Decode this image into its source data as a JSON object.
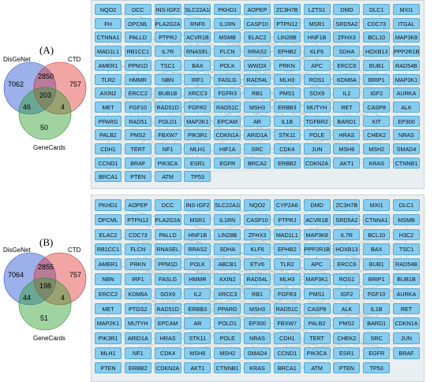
{
  "panel_a": {
    "label": "(A)",
    "venn": {
      "set_names": [
        "DisGeNet",
        "CTD",
        "GeneCards"
      ],
      "colors": [
        "#4a6fd8",
        "#e03a3a",
        "#2f9e2f"
      ],
      "regions": {
        "disgenet_only": "7062",
        "ctd_only": "757",
        "genecards_only": "50",
        "disgenet_ctd": "2850",
        "disgenet_genecards": "46",
        "ctd_genecards": "4",
        "all_three": "203"
      }
    },
    "network_nodes": [
      "NQO2",
      "DCC",
      "INS-IGF2",
      "SLC22A18",
      "PKHD1",
      "AOPEP",
      "ZC3H7B",
      "LZTS1",
      "DMD",
      "DLC1",
      "MXI1",
      "FH",
      "OPCML",
      "PLA2G2A",
      "RNF6",
      "IL1RN",
      "CASP10",
      "PTPN12",
      "MSR1",
      "SRD5A2",
      "CDC73",
      "ITGAL",
      "CTNNA1",
      "PALLD",
      "PTPRJ",
      "ACVR1B",
      "MSMB",
      "ELAC2",
      "LIN28B",
      "HNF1B",
      "ZFHX3",
      "BCL10",
      "MAP3K8",
      "MAD1L1",
      "RB1CC1",
      "IL7R",
      "RNASEL",
      "FLCN",
      "RRAS2",
      "EPHB2",
      "KLF6",
      "SDHA",
      "HOXB13",
      "PPP2R1B",
      "AMER1",
      "PPM1D",
      "TSC1",
      "BAX",
      "POLK",
      "WWOX",
      "PRKN",
      "APC",
      "ERCC6",
      "BUB1",
      "RAD54B",
      "TLR2",
      "HMMR",
      "NBN",
      "IRF1",
      "FASLG",
      "RAD54L",
      "MLH3",
      "ROS1",
      "KDM6A",
      "BRIP1",
      "MAP3K1",
      "AXIN2",
      "ERCC2",
      "BUB1B",
      "XRCC3",
      "FGFR3",
      "RB1",
      "PMS1",
      "SOX9",
      "IL2",
      "IGF2",
      "AURKA",
      "MET",
      "FGF10",
      "RAD51D",
      "FGFR2",
      "RAD51C",
      "MSH3",
      "ERBB3",
      "MUTYH",
      "RET",
      "CASP8",
      "ALK",
      "PPARG",
      "RAD51",
      "POLD1",
      "MAP2K1",
      "EPCAM",
      "AR",
      "IL1B",
      "TGFBR2",
      "BARD1",
      "KIT",
      "EP300",
      "PALB2",
      "PMS2",
      "FBXW7",
      "PIK3R1",
      "CDKN1A",
      "ARID1A",
      "STK11",
      "POLE",
      "HRAS",
      "CHEK2",
      "NRAS",
      "CDH1",
      "TERT",
      "NF1",
      "MLH1",
      "HIF1A",
      "SRC",
      "CDK4",
      "JUN",
      "MSH6",
      "MSH2",
      "SMAD4",
      "CCND1",
      "BRAF",
      "PIK3CA",
      "ESR1",
      "EGFR",
      "BRCA2",
      "ERBB2",
      "CDKN2A",
      "AKT1",
      "KRAS",
      "CTNNB1",
      "BRCA1",
      "PTEN",
      "ATM",
      "TP53"
    ]
  },
  "panel_b": {
    "label": "(B)",
    "venn": {
      "set_names": [
        "DisGeNet",
        "CTD",
        "GeneCards"
      ],
      "colors": [
        "#4a6fd8",
        "#e03a3a",
        "#2f9e2f"
      ],
      "regions": {
        "disgenet_only": "7064",
        "ctd_only": "757",
        "genecards_only": "51",
        "disgenet_ctd": "2855",
        "disgenet_genecards": "44",
        "ctd_genecards": "4",
        "all_three": "198"
      }
    },
    "network_nodes": [
      "PKHD1",
      "AOPEP",
      "DCC",
      "INS-IGF2",
      "SLC22A18",
      "NQO2",
      "CYP2A6",
      "DMD",
      "ZC3H7B",
      "MXI1",
      "DLC1",
      "OPCML",
      "PTPN12",
      "PLA2G2A",
      "MSR1",
      "IL1RN",
      "CASP10",
      "PTPRJ",
      "ACVR1B",
      "SRD5A2",
      "CTNNA1",
      "MSMB",
      "ELAC2",
      "CDC73",
      "PALLD",
      "HNF1B",
      "LIN28B",
      "ZFHX3",
      "MAD1L1",
      "MAP3K8",
      "IL7R",
      "BCL10",
      "H3C2",
      "RB1CC1",
      "FLCN",
      "RNASEL",
      "RRAS2",
      "SDHA",
      "KLF6",
      "EPHB2",
      "PPP2R1B",
      "HOXB13",
      "BAX",
      "TSC1",
      "AMER1",
      "PRKN",
      "PPM1D",
      "POLK",
      "ABCB1",
      "ETV6",
      "TLR2",
      "APC",
      "ERCC6",
      "BUB1",
      "RAD54B",
      "NBN",
      "IRF1",
      "FASLG",
      "HMMR",
      "AXIN2",
      "RAD54L",
      "MLH3",
      "MAP3K1",
      "ROS1",
      "BRIP1",
      "BUB1B",
      "ERCC2",
      "KDM6A",
      "SOX9",
      "IL2",
      "XRCC3",
      "RB1",
      "FGFR3",
      "PMS1",
      "IGF2",
      "FGF10",
      "AURKA",
      "MET",
      "PTGS2",
      "RAD51D",
      "ERBB3",
      "PPARG",
      "MSH3",
      "RAD51C",
      "CASP8",
      "ALK",
      "IL1B",
      "RET",
      "MAP2K1",
      "MUTYH",
      "EPCAM",
      "AR",
      "POLD1",
      "EP300",
      "FBXW7",
      "PALB2",
      "PMS2",
      "BARD1",
      "CDKN1A",
      "PIK3R1",
      "ARID1A",
      "HRAS",
      "STK11",
      "POLE",
      "NRAS",
      "CDH1",
      "TERT",
      "CHEK2",
      "SRC",
      "JUN",
      "MLH1",
      "NF1",
      "CDK4",
      "MSH6",
      "MSH2",
      "SMAD4",
      "CCND1",
      "PIK3CA",
      "ESR1",
      "EGFR",
      "BRAF",
      "PTEN",
      "ERBB2",
      "CDKN2A",
      "AKT1",
      "CTNNB1",
      "KRAS",
      "BRCA1",
      "ATM",
      "PTEN",
      "TP53"
    ]
  }
}
